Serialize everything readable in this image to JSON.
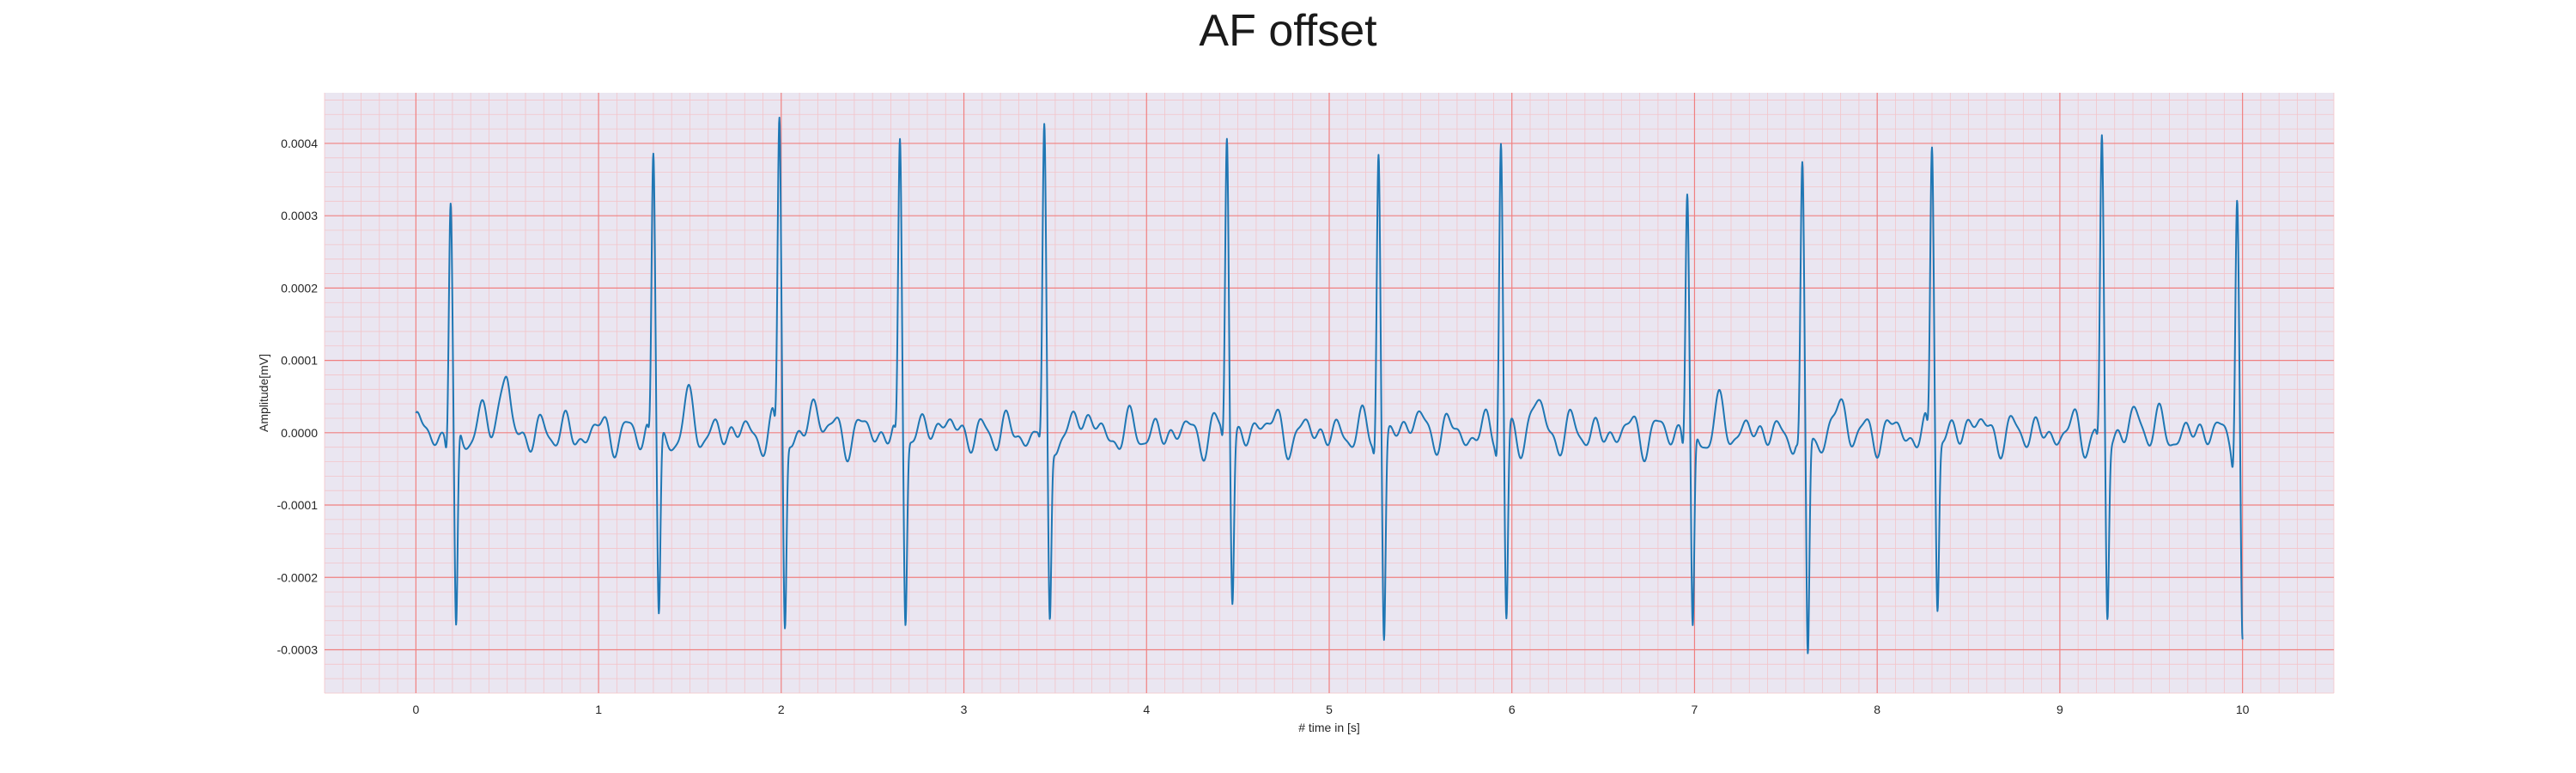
{
  "chart_data": {
    "type": "line",
    "title": "AF offset",
    "xlabel": "# time in [s]",
    "ylabel": "Amplitude[mV]",
    "xlim": [
      -0.5,
      10.5
    ],
    "ylim": [
      -0.00036,
      0.00047
    ],
    "x_ticks": [
      0,
      1,
      2,
      3,
      4,
      5,
      6,
      7,
      8,
      9,
      10
    ],
    "x_tick_labels": [
      "0",
      "1",
      "2",
      "3",
      "4",
      "5",
      "6",
      "7",
      "8",
      "9",
      "10"
    ],
    "y_ticks": [
      -0.0003,
      -0.0002,
      -0.0001,
      0.0,
      0.0001,
      0.0002,
      0.0003,
      0.0004
    ],
    "y_tick_labels": [
      "-0.0003",
      "-0.0002",
      "-0.0001",
      "0.0000",
      "0.0001",
      "0.0002",
      "0.0003",
      "0.0004"
    ],
    "grid": true,
    "minor_grid": true,
    "legend": "none",
    "colors": {
      "line": "#1f77b4",
      "plot_background": "#eae6f1",
      "major_grid": "#f08080",
      "minor_grid": "#f3c4c9"
    },
    "series": [
      {
        "beats": [
          {
            "t": 0.19,
            "r": 0.00032,
            "s": -0.00029
          },
          {
            "t": 1.3,
            "r": 0.00038,
            "s": -0.000255
          },
          {
            "t": 1.99,
            "r": 0.00043,
            "s": -0.000265
          },
          {
            "t": 2.65,
            "r": 0.0004,
            "s": -0.000255
          },
          {
            "t": 3.44,
            "r": 0.0004,
            "s": -0.000265
          },
          {
            "t": 4.44,
            "r": 0.000415,
            "s": -0.000225
          },
          {
            "t": 5.27,
            "r": 0.0004,
            "s": -0.00028
          },
          {
            "t": 5.94,
            "r": 0.00041,
            "s": -0.000265
          },
          {
            "t": 6.96,
            "r": 0.000335,
            "s": -0.00028
          },
          {
            "t": 7.59,
            "r": 0.00034,
            "s": -0.00032
          },
          {
            "t": 8.3,
            "r": 0.000395,
            "s": -0.000235
          },
          {
            "t": 9.23,
            "r": 0.000395,
            "s": -0.000255
          },
          {
            "t": 9.97,
            "r": 0.00034,
            "s": -0.000315
          }
        ]
      }
    ]
  }
}
